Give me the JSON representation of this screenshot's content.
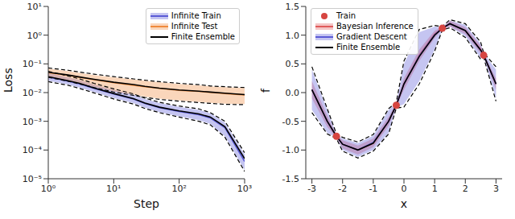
{
  "chart_data": [
    {
      "type": "line",
      "log": true,
      "x_label": "Step",
      "y_label": "Loss",
      "legend": "upper right",
      "x": [
        1,
        2,
        3,
        5,
        10,
        20,
        30,
        50,
        100,
        200,
        300,
        500,
        1000
      ],
      "xlim": [
        1,
        1000
      ],
      "xticks": [
        {
          "value": 1,
          "label": "10⁰"
        },
        {
          "value": 10,
          "label": "10¹"
        },
        {
          "value": 100,
          "label": "10²"
        },
        {
          "value": 1000,
          "label": "10³"
        }
      ],
      "ylim": [
        1e-05,
        10
      ],
      "yticks": [
        {
          "value": 1e-05,
          "label": "10⁻⁵"
        },
        {
          "value": 0.0001,
          "label": "10⁻⁴"
        },
        {
          "value": 0.001,
          "label": "10⁻³"
        },
        {
          "value": 0.01,
          "label": "10⁻²"
        },
        {
          "value": 0.1,
          "label": "10⁻¹"
        },
        {
          "value": 1,
          "label": "10⁰"
        },
        {
          "value": 10,
          "label": "10¹"
        }
      ],
      "series": [
        {
          "name": "Infinite Train",
          "color": "#5a5ad6",
          "values": [
            0.035,
            0.025,
            0.02,
            0.014,
            0.009,
            0.006,
            0.0042,
            0.003,
            0.0022,
            0.0017,
            0.0013,
            0.0006,
            4e-05
          ],
          "lower": [
            0.026,
            0.019,
            0.015,
            0.0105,
            0.0065,
            0.0043,
            0.003,
            0.0021,
            0.0015,
            0.0011,
            0.0008,
            0.0003,
            2e-05
          ],
          "upper": [
            0.048,
            0.034,
            0.027,
            0.019,
            0.0125,
            0.0085,
            0.006,
            0.0043,
            0.0032,
            0.0025,
            0.0019,
            0.0009,
            7e-05
          ]
        },
        {
          "name": "Infinite Test",
          "color": "#f08a3c",
          "values": [
            0.05,
            0.04,
            0.034,
            0.028,
            0.022,
            0.018,
            0.016,
            0.014,
            0.012,
            0.011,
            0.0102,
            0.0093,
            0.0083
          ],
          "lower": [
            0.036,
            0.026,
            0.021,
            0.016,
            0.011,
            0.0085,
            0.0072,
            0.0062,
            0.0053,
            0.0047,
            0.0044,
            0.0041,
            0.004
          ],
          "upper": [
            0.068,
            0.056,
            0.049,
            0.041,
            0.034,
            0.029,
            0.026,
            0.023,
            0.02,
            0.018,
            0.0165,
            0.0155,
            0.0145
          ]
        },
        {
          "name": "Finite Ensemble",
          "color": "#000000",
          "line_style": "dashed",
          "train": {
            "values": [
              0.036,
              0.026,
              0.021,
              0.0145,
              0.0093,
              0.0062,
              0.0043,
              0.0031,
              0.0023,
              0.0018,
              0.0014,
              0.00065,
              5e-05
            ],
            "lower": [
              0.024,
              0.018,
              0.014,
              0.0098,
              0.006,
              0.004,
              0.0028,
              0.002,
              0.0014,
              0.001,
              0.00075,
              0.00028,
              1.8e-05
            ],
            "upper": [
              0.055,
              0.038,
              0.03,
              0.021,
              0.0135,
              0.009,
              0.0064,
              0.0046,
              0.0034,
              0.0027,
              0.002,
              0.001,
              8e-05
            ]
          },
          "test": {
            "values": [
              0.051,
              0.041,
              0.035,
              0.029,
              0.023,
              0.019,
              0.0165,
              0.0143,
              0.0123,
              0.0112,
              0.0104,
              0.0095,
              0.0085
            ],
            "lower": [
              0.034,
              0.025,
              0.02,
              0.015,
              0.0105,
              0.008,
              0.0068,
              0.0058,
              0.005,
              0.0045,
              0.0042,
              0.0039,
              0.0038
            ],
            "upper": [
              0.072,
              0.06,
              0.052,
              0.044,
              0.036,
              0.03,
              0.027,
              0.024,
              0.021,
              0.019,
              0.017,
              0.016,
              0.015
            ]
          }
        }
      ]
    },
    {
      "type": "line",
      "x_label": "x",
      "y_label": "f",
      "legend": "upper left",
      "x": [
        -3,
        -2.5,
        -2.2,
        -2,
        -1.5,
        -1,
        -0.5,
        -0.25,
        0,
        0.5,
        1,
        1.25,
        1.5,
        2,
        2.5,
        2.6,
        3
      ],
      "xlim": [
        -3.2,
        3.2
      ],
      "xticks": [
        -3,
        -2,
        -1,
        0,
        1,
        2,
        3
      ],
      "ylim": [
        -1.5,
        1.5
      ],
      "yticks": [
        -1.5,
        {
          "value": -1,
          "label": "-1.0"
        },
        -0.5,
        {
          "value": 0,
          "label": "0.0"
        },
        0.5,
        {
          "value": 1,
          "label": "1.0"
        },
        1.5
      ],
      "series": [
        {
          "name": "Train",
          "type": "scatter",
          "marker": "circle",
          "color": "#d64541",
          "x": [
            -2.2,
            -0.25,
            1.25,
            2.6
          ],
          "values": [
            -0.76,
            -0.22,
            1.12,
            0.65
          ]
        },
        {
          "name": "Bayesian Inference",
          "color": "#e05a5a",
          "values": [
            0.05,
            -0.5,
            -0.76,
            -0.9,
            -1.0,
            -0.88,
            -0.5,
            -0.22,
            0.15,
            0.65,
            1.02,
            1.12,
            1.2,
            1.08,
            0.75,
            0.65,
            0.15
          ],
          "lower": [
            -0.1,
            -0.6,
            -0.78,
            -0.97,
            -1.08,
            -0.95,
            -0.58,
            -0.25,
            0.05,
            0.55,
            0.95,
            1.1,
            1.15,
            1.02,
            0.68,
            0.63,
            0.05
          ],
          "upper": [
            0.2,
            -0.4,
            -0.74,
            -0.83,
            -0.92,
            -0.8,
            -0.42,
            -0.19,
            0.25,
            0.75,
            1.08,
            1.14,
            1.25,
            1.14,
            0.82,
            0.67,
            0.25
          ]
        },
        {
          "name": "Gradient Descent",
          "color": "#5a5ad6",
          "values": [
            0.05,
            -0.5,
            -0.76,
            -0.9,
            -1.0,
            -0.87,
            -0.5,
            -0.22,
            0.15,
            0.64,
            1.01,
            1.12,
            1.2,
            1.08,
            0.74,
            0.65,
            0.15
          ],
          "lower": [
            -0.3,
            -0.7,
            -0.79,
            -1.0,
            -1.12,
            -1.0,
            -0.7,
            -0.26,
            -0.2,
            0.2,
            0.75,
            1.1,
            1.15,
            0.98,
            0.6,
            0.62,
            -0.1
          ],
          "upper": [
            0.4,
            -0.3,
            -0.73,
            -0.8,
            -0.88,
            -0.75,
            -0.3,
            -0.18,
            0.5,
            1.05,
            1.15,
            1.14,
            1.25,
            1.18,
            0.85,
            0.68,
            0.4
          ]
        },
        {
          "name": "Finite Ensemble",
          "color": "#000000",
          "line_style": "dashed",
          "values": [
            0.05,
            -0.5,
            -0.76,
            -0.9,
            -1.0,
            -0.88,
            -0.5,
            -0.22,
            0.15,
            0.63,
            1.0,
            1.12,
            1.2,
            1.08,
            0.74,
            0.65,
            0.15
          ],
          "lower": [
            -0.35,
            -0.72,
            -0.8,
            -1.02,
            -1.14,
            -1.02,
            -0.72,
            -0.27,
            -0.25,
            0.15,
            0.72,
            1.09,
            1.13,
            0.96,
            0.58,
            0.61,
            -0.15
          ],
          "upper": [
            0.45,
            -0.28,
            -0.72,
            -0.78,
            -0.86,
            -0.73,
            -0.28,
            -0.17,
            0.55,
            1.1,
            1.17,
            1.15,
            1.27,
            1.2,
            0.88,
            0.69,
            0.45
          ]
        }
      ]
    }
  ]
}
